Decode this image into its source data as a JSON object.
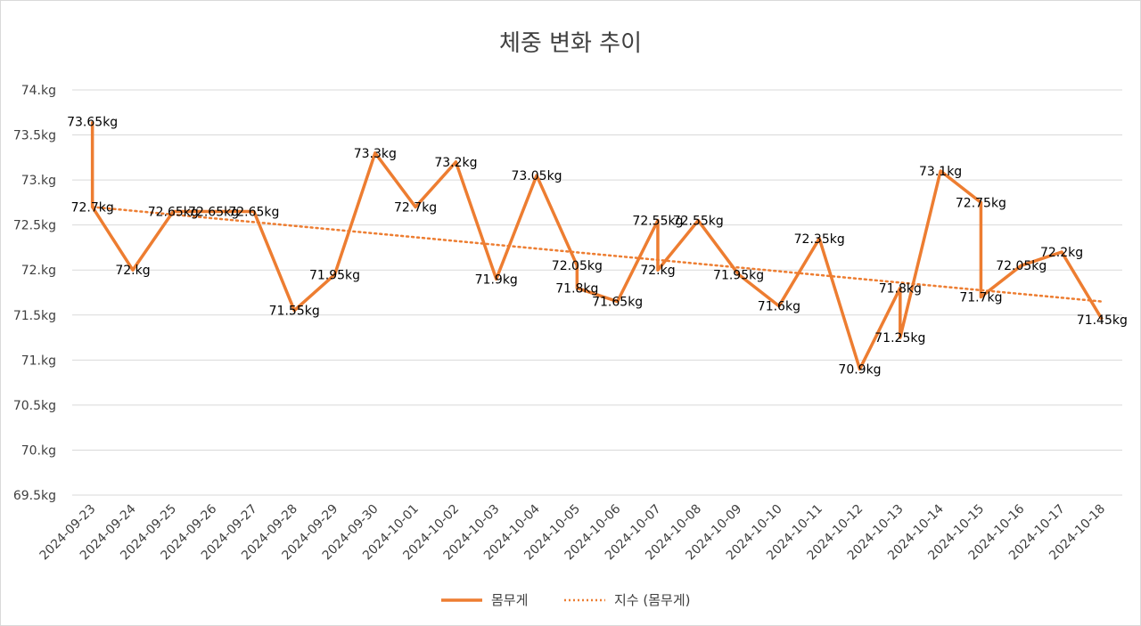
{
  "chart_data": {
    "type": "line",
    "title": "체중 변화 추이",
    "xlabel": "",
    "ylabel": "",
    "ylim": [
      69.5,
      74.0
    ],
    "yticks": [
      {
        "value": 74.0,
        "label": "74.kg"
      },
      {
        "value": 73.5,
        "label": "73.5kg"
      },
      {
        "value": 73.0,
        "label": "73.kg"
      },
      {
        "value": 72.5,
        "label": "72.5kg"
      },
      {
        "value": 72.0,
        "label": "72.kg"
      },
      {
        "value": 71.5,
        "label": "71.5kg"
      },
      {
        "value": 71.0,
        "label": "71.kg"
      },
      {
        "value": 70.5,
        "label": "70.5kg"
      },
      {
        "value": 70.0,
        "label": "70.kg"
      },
      {
        "value": 69.5,
        "label": "69.5kg"
      }
    ],
    "grid": true,
    "categories": [
      "2024-09-23",
      "2024-09-24",
      "2024-09-25",
      "2024-09-26",
      "2024-09-27",
      "2024-09-28",
      "2024-09-29",
      "2024-09-30",
      "2024-10-01",
      "2024-10-02",
      "2024-10-03",
      "2024-10-04",
      "2024-10-05",
      "2024-10-06",
      "2024-10-07",
      "2024-10-08",
      "2024-10-09",
      "2024-10-10",
      "2024-10-11",
      "2024-10-12",
      "2024-10-13",
      "2024-10-14",
      "2024-10-15",
      "2024-10-16",
      "2024-10-17",
      "2024-10-18"
    ],
    "series": [
      {
        "name": "몸무게",
        "color": "#ED7D31",
        "points": [
          {
            "x": 0,
            "value": 73.65,
            "label": "73.65kg"
          },
          {
            "x": 0,
            "value": 72.7,
            "label": "72.7kg"
          },
          {
            "x": 1,
            "value": 72.0,
            "label": "72.kg"
          },
          {
            "x": 2,
            "value": 72.65,
            "label": "72.65kg"
          },
          {
            "x": 3,
            "value": 72.65,
            "label": "72.65kg"
          },
          {
            "x": 4,
            "value": 72.65,
            "label": "72.65kg"
          },
          {
            "x": 5,
            "value": 71.55,
            "label": "71.55kg"
          },
          {
            "x": 6,
            "value": 71.95,
            "label": "71.95kg"
          },
          {
            "x": 7,
            "value": 73.3,
            "label": "73.3kg"
          },
          {
            "x": 8,
            "value": 72.7,
            "label": "72.7kg"
          },
          {
            "x": 9,
            "value": 73.2,
            "label": "73.2kg"
          },
          {
            "x": 10,
            "value": 71.9,
            "label": "71.9kg"
          },
          {
            "x": 11,
            "value": 73.05,
            "label": "73.05kg"
          },
          {
            "x": 12,
            "value": 72.05,
            "label": "72.05kg"
          },
          {
            "x": 12,
            "value": 71.8,
            "label": "71.8kg"
          },
          {
            "x": 13,
            "value": 71.65,
            "label": "71.65kg"
          },
          {
            "x": 14,
            "value": 72.55,
            "label": "72.55kg"
          },
          {
            "x": 14,
            "value": 72.0,
            "label": "72.kg"
          },
          {
            "x": 15,
            "value": 72.55,
            "label": "72.55kg"
          },
          {
            "x": 16,
            "value": 71.95,
            "label": "71.95kg"
          },
          {
            "x": 17,
            "value": 71.6,
            "label": "71.6kg"
          },
          {
            "x": 18,
            "value": 72.35,
            "label": "72.35kg"
          },
          {
            "x": 19,
            "value": 70.9,
            "label": "70.9kg"
          },
          {
            "x": 20,
            "value": 71.8,
            "label": "71.8kg"
          },
          {
            "x": 20,
            "value": 71.25,
            "label": "71.25kg"
          },
          {
            "x": 21,
            "value": 73.1,
            "label": "73.1kg"
          },
          {
            "x": 22,
            "value": 72.75,
            "label": "72.75kg"
          },
          {
            "x": 22,
            "value": 71.7,
            "label": "71.7kg"
          },
          {
            "x": 23,
            "value": 72.05,
            "label": "72.05kg"
          },
          {
            "x": 24,
            "value": 72.2,
            "label": "72.2kg"
          },
          {
            "x": 25,
            "value": 71.45,
            "label": "71.45kg"
          }
        ]
      },
      {
        "name": "지수 (몸무게)",
        "style": "dotted",
        "color": "#ED7D31",
        "type": "exponential-trendline",
        "start": {
          "x": 0,
          "value": 72.7
        },
        "end": {
          "x": 25,
          "value": 71.65
        }
      }
    ],
    "legend": {
      "position": "bottom",
      "items": [
        {
          "label": "몸무게",
          "style": "solid"
        },
        {
          "label": "지수 (몸무게)",
          "style": "dotted"
        }
      ]
    }
  }
}
